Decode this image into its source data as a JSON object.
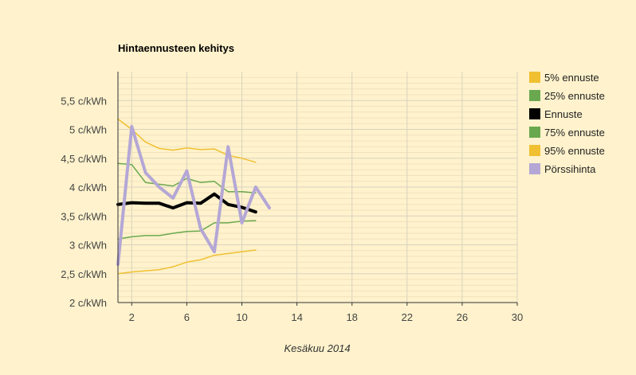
{
  "chart_data": {
    "type": "line",
    "title": "Hintaennusteen kehitys",
    "xlabel": "Kesäkuu 2014",
    "ylabel": "",
    "xlim": [
      1,
      30
    ],
    "ylim": [
      2,
      6
    ],
    "x_ticks": [
      2,
      6,
      10,
      14,
      18,
      22,
      26,
      30
    ],
    "y_ticks": [
      2,
      2.5,
      3,
      3.5,
      4,
      4.5,
      5,
      5.5
    ],
    "y_tick_labels": [
      "2 c/kWh",
      "2,5 c/kWh",
      "3 c/kWh",
      "3,5 c/kWh",
      "4 c/kWh",
      "4,5 c/kWh",
      "5 c/kWh",
      "5,5 c/kWh"
    ],
    "grid": true,
    "legend_position": "right",
    "series": [
      {
        "name": "5% ennuste",
        "color": "#f0c030",
        "width": 1.5,
        "x": [
          1,
          2,
          3,
          4,
          5,
          6,
          7,
          8,
          9,
          10,
          11
        ],
        "values": [
          5.18,
          5.0,
          4.78,
          4.67,
          4.64,
          4.68,
          4.65,
          4.66,
          4.55,
          4.5,
          4.43
        ]
      },
      {
        "name": "25% ennuste",
        "color": "#6aa84f",
        "width": 1.5,
        "x": [
          1,
          2,
          3,
          4,
          5,
          6,
          7,
          8,
          9,
          10,
          11
        ],
        "values": [
          4.41,
          4.39,
          4.08,
          4.05,
          4.02,
          4.15,
          4.08,
          4.1,
          3.92,
          3.92,
          3.9
        ]
      },
      {
        "name": "Ennuste",
        "color": "#000000",
        "width": 4,
        "x": [
          1,
          2,
          3,
          4,
          5,
          6,
          7,
          8,
          9,
          10,
          11
        ],
        "values": [
          3.7,
          3.73,
          3.72,
          3.72,
          3.64,
          3.73,
          3.72,
          3.88,
          3.7,
          3.65,
          3.57
        ]
      },
      {
        "name": "75% ennuste",
        "color": "#6aa84f",
        "width": 1.5,
        "x": [
          1,
          2,
          3,
          4,
          5,
          6,
          7,
          8,
          9,
          10,
          11
        ],
        "values": [
          3.1,
          3.14,
          3.16,
          3.16,
          3.2,
          3.23,
          3.24,
          3.38,
          3.38,
          3.41,
          3.42
        ]
      },
      {
        "name": "95% ennuste",
        "color": "#f0c030",
        "width": 1.5,
        "x": [
          1,
          2,
          3,
          4,
          5,
          6,
          7,
          8,
          9,
          10,
          11
        ],
        "values": [
          2.5,
          2.53,
          2.55,
          2.57,
          2.62,
          2.7,
          2.74,
          2.82,
          2.85,
          2.88,
          2.91
        ]
      },
      {
        "name": "Pörssihinta",
        "color": "#b4a7d6",
        "width": 4,
        "x": [
          1,
          2,
          3,
          4,
          5,
          6,
          7,
          8,
          9,
          10,
          11,
          12
        ],
        "values": [
          2.66,
          5.05,
          4.25,
          4.0,
          3.81,
          4.28,
          3.28,
          2.88,
          4.7,
          3.38,
          4.0,
          3.64
        ]
      }
    ]
  }
}
